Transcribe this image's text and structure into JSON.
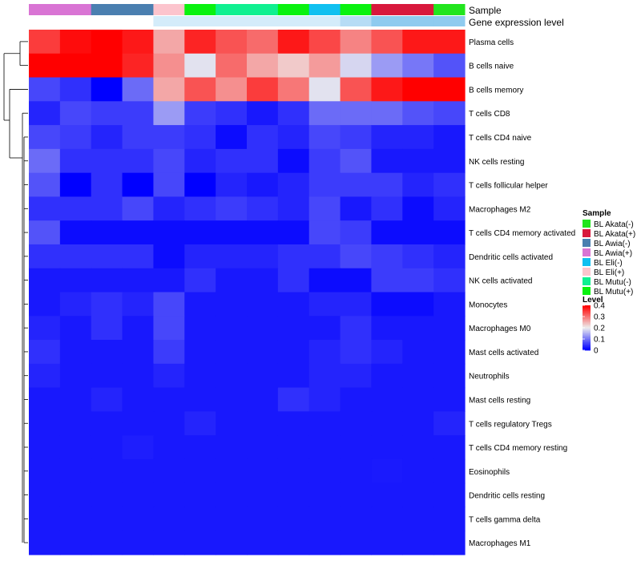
{
  "chart_data": {
    "type": "heatmap",
    "annotation_labels": [
      "Sample",
      "Gene expression level"
    ],
    "rows": [
      "Plasma cells",
      "B cells naive",
      "B cells memory",
      "T cells CD8",
      "T cells CD4 naive",
      "NK cells resting",
      "T cells follicular helper",
      "Macrophages M2",
      "T cells CD4 memory activated",
      "Dendritic cells activated",
      "NK cells activated",
      "Monocytes",
      "Macrophages M0",
      "Mast cells activated",
      "Neutrophils",
      "Mast cells resting",
      "T cells regulatory  Tregs",
      "T cells CD4 memory resting",
      "Eosinophils",
      "Dendritic cells resting",
      "T cells gamma delta",
      "Macrophages M1"
    ],
    "columns": [
      "BL Awia(+)",
      "BL Awia(+)",
      "BL Awia(-)",
      "BL Awia(-)",
      "BL Eli(+)",
      "BL Mutu(+)",
      "BL Mutu(-)",
      "BL Mutu(-)",
      "BL Mutu(+)",
      "BL Eli(-)",
      "BL Mutu(+)",
      "BL Akata(+)",
      "BL Akata(+)",
      "BL Akata(-)"
    ],
    "sample_colors": {
      "BL Akata(-)": "#22e51e",
      "BL Akata(+)": "#d8183c",
      "BL Awia(-)": "#4a7fb0",
      "BL Awia(+)": "#d974d4",
      "BL Eli(-)": "#10c0f0",
      "BL Eli(+)": "#fcc4cd",
      "BL Mutu(-)": "#0ff090",
      "BL Mutu(+)": "#09f20f"
    },
    "gene_expression_colors": [
      "#ffffff",
      "#ffffff",
      "#ffffff",
      "#ffffff",
      "#d4ecfa",
      "#d4ecfa",
      "#d4ecfa",
      "#d4ecfa",
      "#d4ecfa",
      "#d4ecfa",
      "#b6dcf5",
      "#8fcbef",
      "#8fcbef",
      "#8fcbef"
    ],
    "values": [
      [
        0.35,
        0.39,
        0.4,
        0.38,
        0.26,
        0.37,
        0.33,
        0.31,
        0.38,
        0.34,
        0.29,
        0.33,
        0.38,
        0.38
      ],
      [
        0.4,
        0.4,
        0.4,
        0.37,
        0.28,
        0.19,
        0.31,
        0.26,
        0.23,
        0.27,
        0.18,
        0.13,
        0.1,
        0.07
      ],
      [
        0.06,
        0.04,
        0.0,
        0.09,
        0.26,
        0.33,
        0.28,
        0.35,
        0.3,
        0.19,
        0.33,
        0.38,
        0.4,
        0.4
      ],
      [
        0.03,
        0.06,
        0.05,
        0.05,
        0.13,
        0.05,
        0.04,
        0.02,
        0.04,
        0.09,
        0.09,
        0.09,
        0.07,
        0.06
      ],
      [
        0.06,
        0.05,
        0.03,
        0.05,
        0.05,
        0.04,
        0.01,
        0.04,
        0.03,
        0.06,
        0.05,
        0.03,
        0.03,
        0.02
      ],
      [
        0.09,
        0.04,
        0.04,
        0.04,
        0.06,
        0.03,
        0.04,
        0.04,
        0.01,
        0.05,
        0.07,
        0.02,
        0.02,
        0.02
      ],
      [
        0.07,
        0.0,
        0.04,
        0.0,
        0.06,
        0.0,
        0.03,
        0.02,
        0.03,
        0.05,
        0.05,
        0.05,
        0.03,
        0.04
      ],
      [
        0.04,
        0.04,
        0.04,
        0.06,
        0.03,
        0.04,
        0.05,
        0.04,
        0.03,
        0.06,
        0.02,
        0.04,
        0.01,
        0.03
      ],
      [
        0.07,
        0.01,
        0.01,
        0.01,
        0.01,
        0.01,
        0.01,
        0.01,
        0.01,
        0.06,
        0.05,
        0.01,
        0.01,
        0.01
      ],
      [
        0.04,
        0.04,
        0.04,
        0.04,
        0.01,
        0.03,
        0.03,
        0.03,
        0.04,
        0.04,
        0.06,
        0.05,
        0.04,
        0.03
      ],
      [
        0.02,
        0.02,
        0.02,
        0.02,
        0.02,
        0.04,
        0.02,
        0.02,
        0.04,
        0.01,
        0.01,
        0.05,
        0.05,
        0.04
      ],
      [
        0.02,
        0.03,
        0.04,
        0.03,
        0.06,
        0.02,
        0.02,
        0.02,
        0.02,
        0.03,
        0.03,
        0.01,
        0.01,
        0.02
      ],
      [
        0.03,
        0.02,
        0.04,
        0.02,
        0.06,
        0.02,
        0.02,
        0.02,
        0.02,
        0.02,
        0.04,
        0.02,
        0.02,
        0.02
      ],
      [
        0.04,
        0.02,
        0.02,
        0.02,
        0.05,
        0.02,
        0.02,
        0.02,
        0.02,
        0.03,
        0.04,
        0.03,
        0.02,
        0.02
      ],
      [
        0.03,
        0.02,
        0.02,
        0.02,
        0.03,
        0.02,
        0.02,
        0.02,
        0.02,
        0.03,
        0.03,
        0.02,
        0.02,
        0.02
      ],
      [
        0.02,
        0.02,
        0.03,
        0.02,
        0.02,
        0.02,
        0.02,
        0.02,
        0.04,
        0.03,
        0.02,
        0.02,
        0.02,
        0.02
      ],
      [
        0.02,
        0.02,
        0.02,
        0.02,
        0.02,
        0.03,
        0.02,
        0.02,
        0.02,
        0.02,
        0.02,
        0.02,
        0.02,
        0.03
      ],
      [
        0.02,
        0.02,
        0.02,
        0.025,
        0.02,
        0.02,
        0.02,
        0.02,
        0.02,
        0.02,
        0.02,
        0.02,
        0.02,
        0.02
      ],
      [
        0.02,
        0.02,
        0.02,
        0.02,
        0.02,
        0.02,
        0.02,
        0.02,
        0.02,
        0.02,
        0.02,
        0.022,
        0.02,
        0.02
      ],
      [
        0.02,
        0.02,
        0.02,
        0.02,
        0.02,
        0.02,
        0.02,
        0.02,
        0.02,
        0.02,
        0.02,
        0.02,
        0.02,
        0.02
      ],
      [
        0.02,
        0.02,
        0.02,
        0.02,
        0.02,
        0.02,
        0.02,
        0.02,
        0.02,
        0.02,
        0.02,
        0.02,
        0.02,
        0.02
      ],
      [
        0.02,
        0.02,
        0.02,
        0.02,
        0.02,
        0.02,
        0.02,
        0.02,
        0.02,
        0.02,
        0.02,
        0.02,
        0.02,
        0.02
      ]
    ],
    "color_scale": {
      "min": 0,
      "max": 0.4,
      "stops": [
        {
          "value": 0,
          "color": "#0000ff"
        },
        {
          "value": 0.2,
          "color": "#eeeeee"
        },
        {
          "value": 0.4,
          "color": "#ff0000"
        }
      ]
    },
    "legend_sample": {
      "title": "Sample",
      "entries": [
        "BL Akata(-)",
        "BL Akata(+)",
        "BL Awia(-)",
        "BL Awia(+)",
        "BL Eli(-)",
        "BL Eli(+)",
        "BL Mutu(-)",
        "BL Mutu(+)"
      ]
    },
    "legend_level": {
      "title": "Level",
      "ticks": [
        "0.4",
        "0.3",
        "0.2",
        "0.1",
        "0"
      ]
    }
  }
}
